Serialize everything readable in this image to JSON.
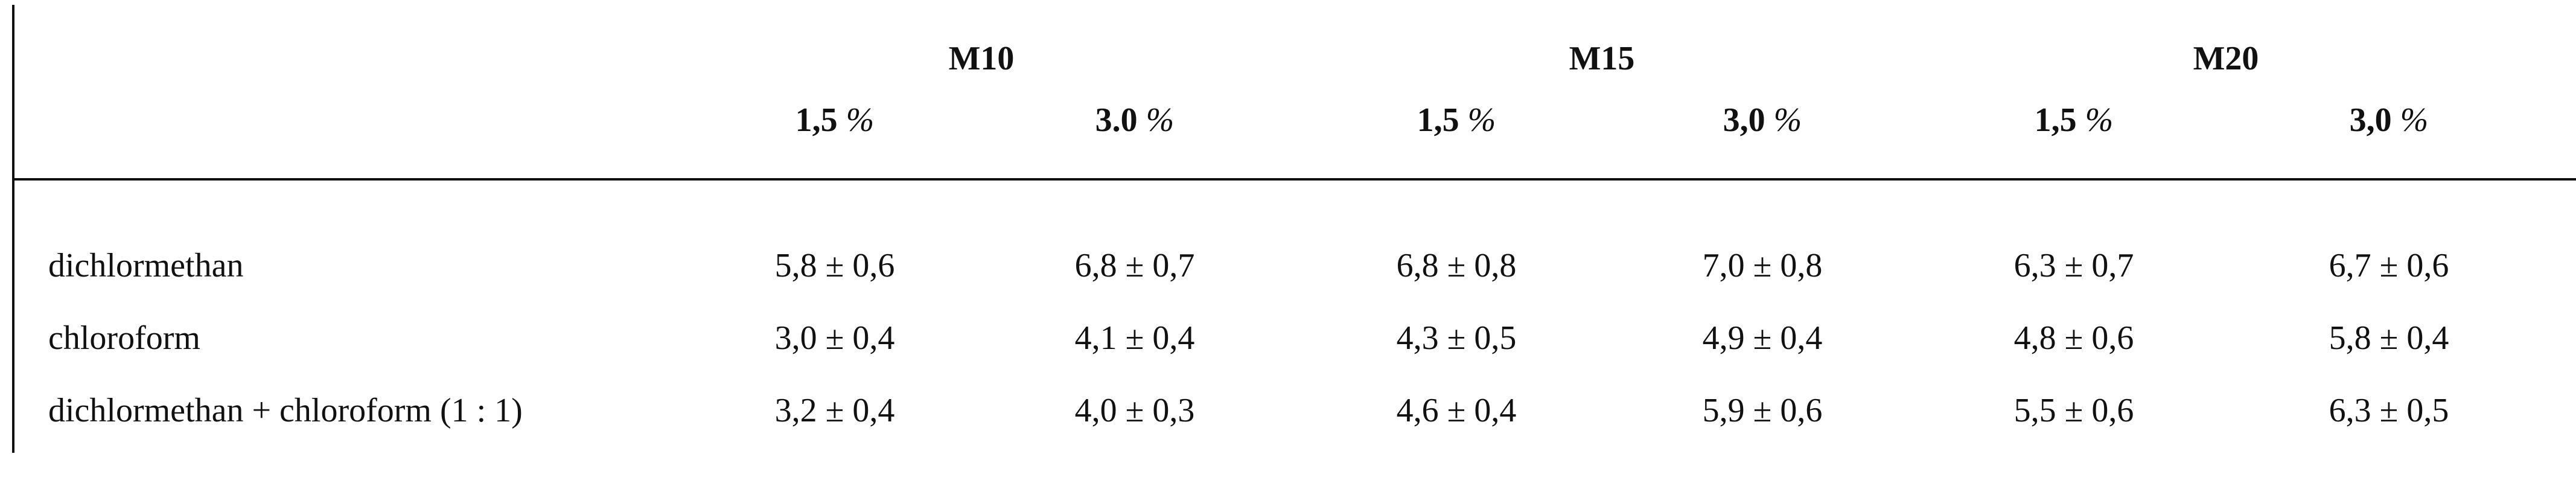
{
  "table": {
    "groups": [
      "M10",
      "M15",
      "M20"
    ],
    "subheaders": [
      {
        "value": "1,5",
        "unit": "%"
      },
      {
        "value": "3.0",
        "unit": "%"
      },
      {
        "value": "1,5",
        "unit": "%"
      },
      {
        "value": "3,0",
        "unit": "%"
      },
      {
        "value": "1,5",
        "unit": "%"
      },
      {
        "value": "3,0",
        "unit": "%"
      }
    ],
    "rows": [
      {
        "label": "dichlormethan",
        "values": [
          "5,8 ± 0,6",
          "6,8 ± 0,7",
          "6,8 ± 0,8",
          "7,0 ± 0,8",
          "6,3 ± 0,7",
          "6,7 ± 0,6"
        ]
      },
      {
        "label": "chloroform",
        "values": [
          "3,0 ± 0,4",
          "4,1 ± 0,4",
          "4,3 ± 0,5",
          "4,9 ± 0,4",
          "4,8 ± 0,6",
          "5,8 ± 0,4"
        ]
      },
      {
        "label": "dichlormethan + chloroform (1 : 1)",
        "values": [
          "3,2 ± 0,4",
          "4,0 ± 0,3",
          "4,6 ± 0,4",
          "5,9 ± 0,6",
          "5,5 ± 0,6",
          "6,3 ± 0,5"
        ]
      }
    ]
  }
}
